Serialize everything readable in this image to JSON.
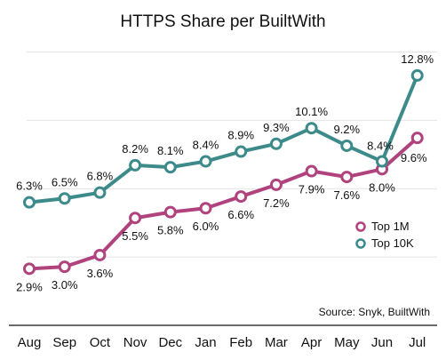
{
  "chart_data": {
    "type": "line",
    "title": "HTTPS Share per BuiltWith",
    "categories": [
      "Aug",
      "Sep",
      "Oct",
      "Nov",
      "Dec",
      "Jan",
      "Feb",
      "Mar",
      "Apr",
      "May",
      "Jun",
      "Jul"
    ],
    "series": [
      {
        "name": "Top 1M",
        "color": "#b0427d",
        "values": [
          2.9,
          3.0,
          3.6,
          5.5,
          5.8,
          6.0,
          6.6,
          7.2,
          7.9,
          7.6,
          8.0,
          9.6
        ],
        "labels": [
          "2.9%",
          "3.0%",
          "3.6%",
          "5.5%",
          "5.8%",
          "6.0%",
          "6.6%",
          "7.2%",
          "7.9%",
          "7.6%",
          "8.0%",
          "9.6%"
        ]
      },
      {
        "name": "Top 10K",
        "color": "#3d8a8a",
        "values": [
          6.3,
          6.5,
          6.8,
          8.2,
          8.1,
          8.4,
          8.9,
          9.3,
          10.1,
          9.2,
          8.4,
          12.8
        ],
        "labels": [
          "6.3%",
          "6.5%",
          "6.8%",
          "8.2%",
          "8.1%",
          "8.4%",
          "8.9%",
          "9.3%",
          "10.1%",
          "9.2%",
          "8.4%",
          "12.8%"
        ]
      }
    ],
    "ylim": [
      0,
      14
    ],
    "gridlines": [
      0,
      3.5,
      7,
      10.5,
      14
    ],
    "grid": true,
    "legend": "right",
    "source": "Source: Snyk, BuiltWith"
  }
}
